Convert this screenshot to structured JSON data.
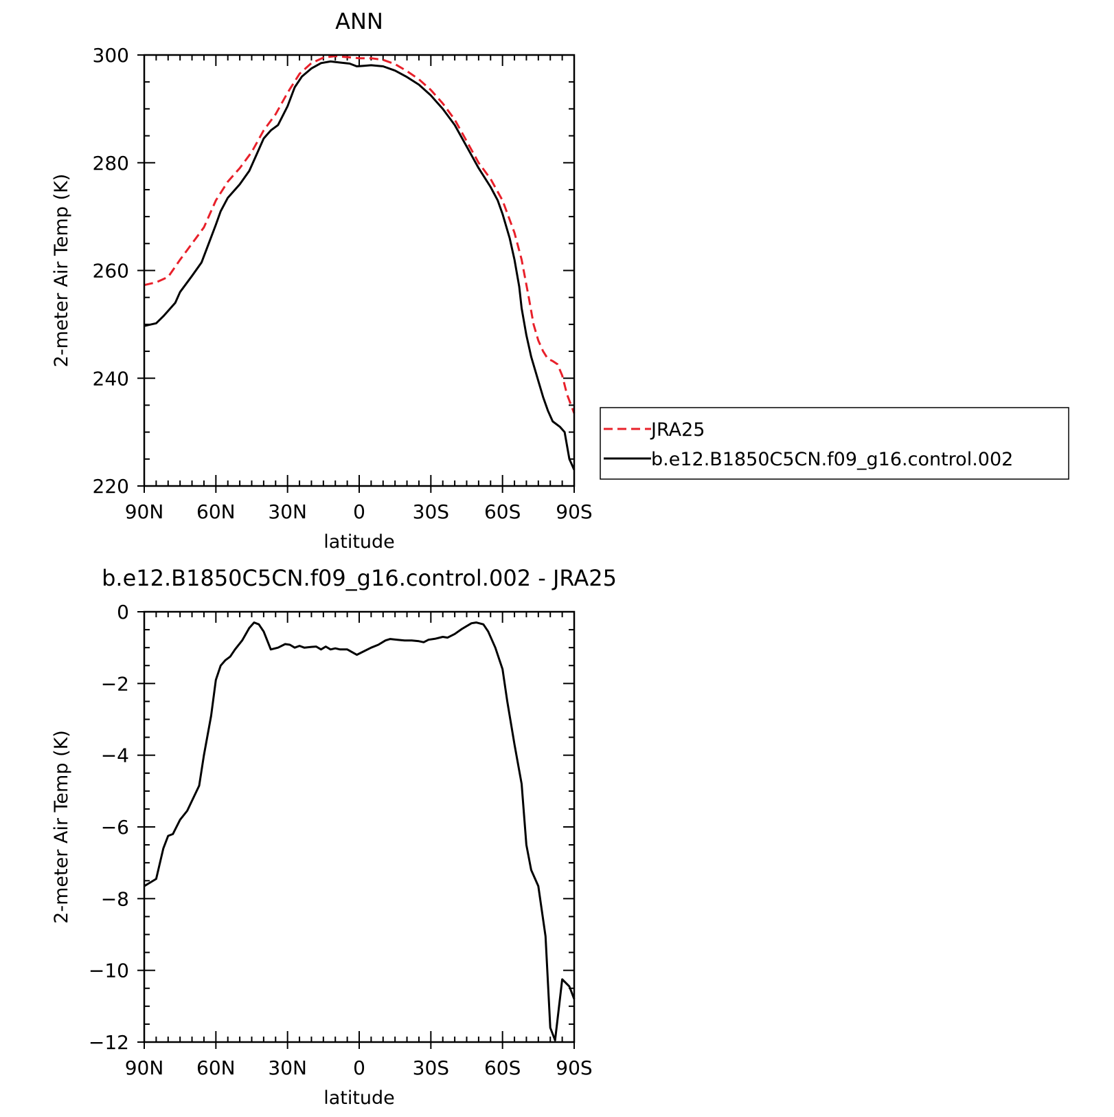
{
  "chart_data": [
    {
      "type": "line",
      "title": "ANN",
      "xlabel": "latitude",
      "ylabel": "2-meter Air Temp (K)",
      "xlim": [
        90,
        -90
      ],
      "ylim": [
        220,
        300
      ],
      "x_ticks": [
        {
          "value": 90,
          "label": "90N"
        },
        {
          "value": 60,
          "label": "60N"
        },
        {
          "value": 30,
          "label": "30N"
        },
        {
          "value": 0,
          "label": "0"
        },
        {
          "value": -30,
          "label": "30S"
        },
        {
          "value": -60,
          "label": "60S"
        },
        {
          "value": -90,
          "label": "90S"
        }
      ],
      "y_ticks": [
        {
          "value": 300,
          "label": "300"
        },
        {
          "value": 280,
          "label": "280"
        },
        {
          "value": 260,
          "label": "260"
        },
        {
          "value": 240,
          "label": "240"
        },
        {
          "value": 220,
          "label": "220"
        }
      ],
      "grid": false,
      "legend": {
        "placement": "right, outside the plot"
      },
      "series": [
        {
          "name": "JRA25",
          "color": "#e8202a",
          "dash": "dashed",
          "points": [
            [
              90,
              257.3
            ],
            [
              85,
              257.8
            ],
            [
              80,
              258.8
            ],
            [
              75,
              262
            ],
            [
              70,
              265
            ],
            [
              65,
              268
            ],
            [
              60,
              273
            ],
            [
              55,
              276.5
            ],
            [
              50,
              279
            ],
            [
              45,
              282
            ],
            [
              40,
              286
            ],
            [
              35,
              289
            ],
            [
              30,
              293
            ],
            [
              25,
              296.5
            ],
            [
              20,
              298.5
            ],
            [
              15,
              299.5
            ],
            [
              10,
              299.8
            ],
            [
              5,
              299.6
            ],
            [
              0,
              299.4
            ],
            [
              -5,
              299.4
            ],
            [
              -10,
              299.1
            ],
            [
              -15,
              298.3
            ],
            [
              -20,
              297
            ],
            [
              -25,
              295.5
            ],
            [
              -30,
              293.5
            ],
            [
              -35,
              291
            ],
            [
              -40,
              288
            ],
            [
              -45,
              284
            ],
            [
              -50,
              280
            ],
            [
              -55,
              277
            ],
            [
              -60,
              273
            ],
            [
              -65,
              267
            ],
            [
              -68,
              262
            ],
            [
              -71,
              255
            ],
            [
              -73,
              250
            ],
            [
              -75,
              247
            ],
            [
              -77,
              245
            ],
            [
              -79,
              243.6
            ],
            [
              -81,
              243.2
            ],
            [
              -83,
              242.6
            ],
            [
              -85,
              240.5
            ],
            [
              -87,
              237
            ],
            [
              -90,
              233.5
            ]
          ]
        },
        {
          "name": "b.e12.B1850C5CN.f09_g16.control.002",
          "color": "#000000",
          "dash": "solid",
          "points": [
            [
              90,
              249.7
            ],
            [
              85,
              250.2
            ],
            [
              82,
              251.5
            ],
            [
              80,
              252.5
            ],
            [
              77,
              254
            ],
            [
              75,
              256
            ],
            [
              70,
              259
            ],
            [
              66,
              261.5
            ],
            [
              63,
              265
            ],
            [
              60,
              268.5
            ],
            [
              58,
              271
            ],
            [
              55,
              273.5
            ],
            [
              50,
              276
            ],
            [
              46,
              278.5
            ],
            [
              43,
              281.5
            ],
            [
              40,
              284.5
            ],
            [
              37,
              286
            ],
            [
              34,
              287
            ],
            [
              30,
              290.5
            ],
            [
              27,
              294
            ],
            [
              24,
              296
            ],
            [
              20,
              297.5
            ],
            [
              16,
              298.5
            ],
            [
              12,
              298.8
            ],
            [
              8,
              298.6
            ],
            [
              4,
              298.4
            ],
            [
              1,
              297.9
            ],
            [
              -2,
              298
            ],
            [
              -5,
              298.1
            ],
            [
              -10,
              297.9
            ],
            [
              -15,
              297.1
            ],
            [
              -20,
              295.9
            ],
            [
              -25,
              294.5
            ],
            [
              -30,
              292.5
            ],
            [
              -35,
              290
            ],
            [
              -40,
              287
            ],
            [
              -45,
              283
            ],
            [
              -50,
              279
            ],
            [
              -55,
              275.5
            ],
            [
              -58,
              273
            ],
            [
              -60,
              270.5
            ],
            [
              -63,
              266
            ],
            [
              -65,
              262
            ],
            [
              -67,
              257
            ],
            [
              -68,
              253
            ],
            [
              -70,
              248
            ],
            [
              -72,
              244
            ],
            [
              -75,
              239.5
            ],
            [
              -77,
              236.5
            ],
            [
              -79,
              234
            ],
            [
              -81,
              232
            ],
            [
              -84,
              231
            ],
            [
              -86,
              230
            ],
            [
              -88,
              225
            ],
            [
              -90,
              223
            ]
          ]
        }
      ]
    },
    {
      "type": "line",
      "title": "b.e12.B1850C5CN.f09_g16.control.002 - JRA25",
      "xlabel": "latitude",
      "ylabel": "2-meter Air Temp (K)",
      "xlim": [
        90,
        -90
      ],
      "ylim": [
        -12,
        0
      ],
      "x_ticks": [
        {
          "value": 90,
          "label": "90N"
        },
        {
          "value": 60,
          "label": "60N"
        },
        {
          "value": 30,
          "label": "30N"
        },
        {
          "value": 0,
          "label": "0"
        },
        {
          "value": -30,
          "label": "30S"
        },
        {
          "value": -60,
          "label": "60S"
        },
        {
          "value": -90,
          "label": "90S"
        }
      ],
      "y_ticks": [
        {
          "value": 0,
          "label": "0"
        },
        {
          "value": -2,
          "label": "−2"
        },
        {
          "value": -4,
          "label": "−4"
        },
        {
          "value": -6,
          "label": "−6"
        },
        {
          "value": -8,
          "label": "−8"
        },
        {
          "value": -10,
          "label": "−10"
        },
        {
          "value": -12,
          "label": "−12"
        }
      ],
      "grid": false,
      "series": [
        {
          "color": "#000000",
          "dash": "solid",
          "points": [
            [
              90,
              -7.65
            ],
            [
              85,
              -7.45
            ],
            [
              82,
              -6.6
            ],
            [
              80,
              -6.25
            ],
            [
              78,
              -6.2
            ],
            [
              75,
              -5.8
            ],
            [
              72,
              -5.55
            ],
            [
              67,
              -4.85
            ],
            [
              65,
              -4.0
            ],
            [
              62,
              -2.9
            ],
            [
              60,
              -1.9
            ],
            [
              58,
              -1.5
            ],
            [
              56,
              -1.35
            ],
            [
              54,
              -1.25
            ],
            [
              52,
              -1.05
            ],
            [
              49,
              -0.8
            ],
            [
              46,
              -0.45
            ],
            [
              44,
              -0.3
            ],
            [
              42,
              -0.35
            ],
            [
              40,
              -0.55
            ],
            [
              37,
              -1.05
            ],
            [
              34,
              -1.0
            ],
            [
              31,
              -0.9
            ],
            [
              29,
              -0.92
            ],
            [
              27,
              -1.0
            ],
            [
              25,
              -0.95
            ],
            [
              23,
              -1.0
            ],
            [
              20,
              -0.98
            ],
            [
              18,
              -0.97
            ],
            [
              16,
              -1.05
            ],
            [
              14,
              -0.97
            ],
            [
              12,
              -1.05
            ],
            [
              10,
              -1.02
            ],
            [
              8,
              -1.05
            ],
            [
              5,
              -1.05
            ],
            [
              1,
              -1.2
            ],
            [
              -2,
              -1.1
            ],
            [
              -5,
              -1.0
            ],
            [
              -8,
              -0.92
            ],
            [
              -11,
              -0.8
            ],
            [
              -13,
              -0.76
            ],
            [
              -16,
              -0.78
            ],
            [
              -19,
              -0.8
            ],
            [
              -22,
              -0.8
            ],
            [
              -25,
              -0.82
            ],
            [
              -27,
              -0.85
            ],
            [
              -29,
              -0.78
            ],
            [
              -32,
              -0.75
            ],
            [
              -35,
              -0.7
            ],
            [
              -37,
              -0.72
            ],
            [
              -40,
              -0.62
            ],
            [
              -43,
              -0.48
            ],
            [
              -47,
              -0.32
            ],
            [
              -49,
              -0.3
            ],
            [
              -52,
              -0.35
            ],
            [
              -54,
              -0.55
            ],
            [
              -57,
              -1.0
            ],
            [
              -60,
              -1.6
            ],
            [
              -62,
              -2.5
            ],
            [
              -65,
              -3.7
            ],
            [
              -68,
              -4.8
            ],
            [
              -70,
              -6.5
            ],
            [
              -72,
              -7.2
            ],
            [
              -75,
              -7.65
            ],
            [
              -78,
              -9.05
            ],
            [
              -80,
              -11.6
            ],
            [
              -82,
              -11.95
            ],
            [
              -85,
              -10.25
            ],
            [
              -88,
              -10.45
            ],
            [
              -90,
              -10.8
            ]
          ]
        }
      ]
    }
  ]
}
